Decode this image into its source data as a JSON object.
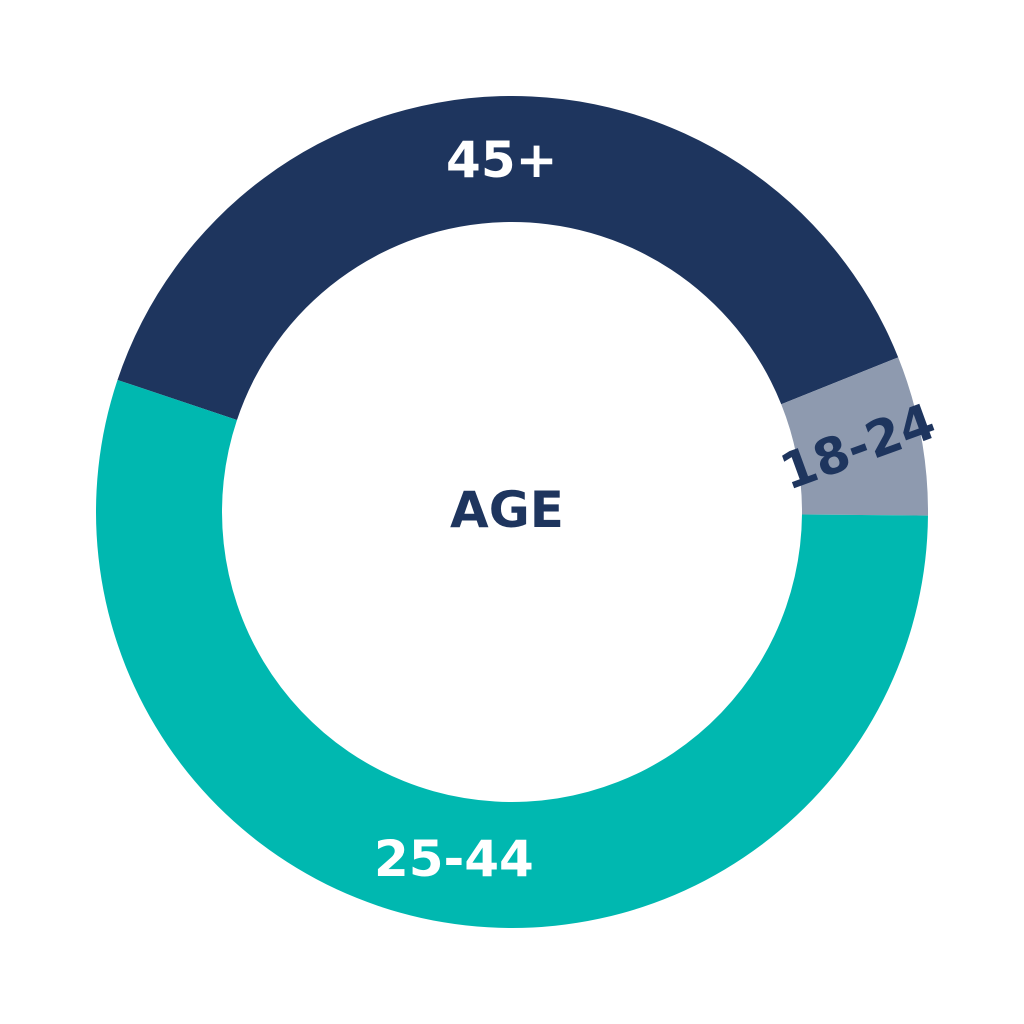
{
  "chart_data": {
    "type": "pie",
    "variant": "donut",
    "center_label": "AGE",
    "slices": [
      {
        "label": "45+",
        "value": 38.8,
        "color": "#1e355e",
        "label_color": "#ffffff"
      },
      {
        "label": "18-24",
        "value": 6.2,
        "color": "#8e9aaf",
        "label_color": "#1e355e"
      },
      {
        "label": "25-44",
        "value": 55.0,
        "color": "#00b8b0",
        "label_color": "#ffffff"
      }
    ],
    "legend": "none"
  }
}
